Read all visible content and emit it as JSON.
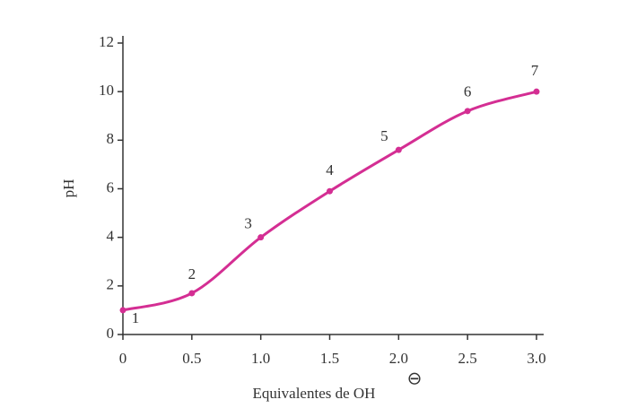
{
  "chart_data": {
    "type": "line",
    "x_label": "Equivalentes de OH",
    "x_label_superscript": "⊖",
    "y_label": "pH",
    "x": [
      0,
      0.5,
      1.0,
      1.5,
      2.0,
      2.5,
      3.0
    ],
    "series": [
      {
        "name": "pH",
        "color": "#d42e93",
        "values": [
          1.0,
          1.7,
          4.0,
          5.9,
          7.6,
          9.2,
          10.0
        ]
      }
    ],
    "point_labels": [
      "1",
      "2",
      "3",
      "4",
      "5",
      "6",
      "7"
    ],
    "xlim": [
      0,
      3.0
    ],
    "xticks": [
      0,
      0.5,
      {
        "value": 1.0,
        "label": "1.0"
      },
      1.5,
      {
        "value": 2.0,
        "label": "2.0"
      },
      2.5,
      {
        "value": 3.0,
        "label": "3.0"
      }
    ],
    "ylim": [
      0,
      12
    ],
    "yticks": [
      0,
      2,
      4,
      6,
      8,
      10,
      12
    ]
  }
}
